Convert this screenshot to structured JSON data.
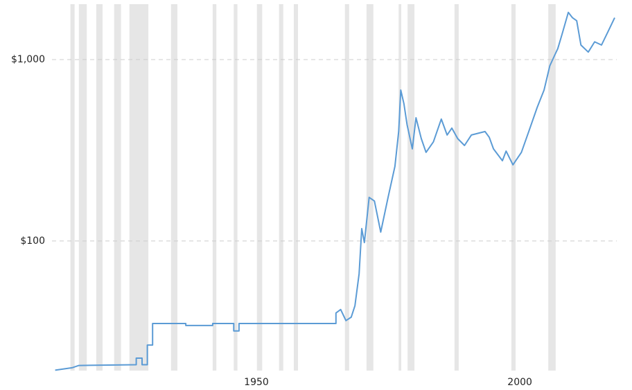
{
  "chart_data": {
    "type": "line",
    "x": [
      1911.8,
      1915,
      1916.3,
      1927.2,
      1927.2,
      1928.3,
      1928.3,
      1929.3,
      1929.3,
      1930.3,
      1930.3,
      1936.6,
      1936.6,
      1941.7,
      1941.7,
      1945.7,
      1945.7,
      1946.7,
      1946.7,
      1965.1,
      1965.1,
      1966,
      1967,
      1968,
      1968.7,
      1969.5,
      1970,
      1970.5,
      1971.4,
      1972.4,
      1973.6,
      1975,
      1976.3,
      1977,
      1977.4,
      1978,
      1978.6,
      1979.6,
      1980.3,
      1981.3,
      1982.2,
      1983.6,
      1985.1,
      1986.2,
      1987.1,
      1988.2,
      1989.5,
      1990.8,
      1993.4,
      1994.2,
      1995,
      1996.7,
      1997.4,
      1998.7,
      2000.3,
      2001.7,
      2003.3,
      2004.6,
      2005.7,
      2006.6,
      2007.2,
      2008,
      2009.2,
      2010,
      2010.8,
      2011.6,
      2013,
      2014.2,
      2015.5,
      2016.8,
      2018
    ],
    "values": [
      19.4,
      20,
      20.6,
      20.8,
      22.6,
      22.6,
      20.8,
      20.8,
      26.7,
      26.7,
      35.1,
      35.1,
      34.2,
      34.2,
      35.1,
      35.1,
      31.9,
      31.9,
      35.1,
      35.1,
      40.1,
      41.9,
      36.4,
      38,
      44,
      66,
      117,
      98,
      174,
      166,
      112,
      174,
      258,
      401,
      679,
      570,
      438,
      322,
      478,
      367,
      308,
      352,
      470,
      384,
      419,
      367,
      336,
      384,
      401,
      373,
      322,
      277,
      313,
      263,
      308,
      401,
      545,
      679,
      924,
      1054,
      1149,
      1372,
      1820,
      1700,
      1637,
      1203,
      1100,
      1252,
      1203,
      1436,
      1700
    ],
    "color": "#5b9bd5",
    "recessions": [
      [
        1914.7,
        1915.5
      ],
      [
        1916.3,
        1917.8
      ],
      [
        1919.6,
        1920.8
      ],
      [
        1923,
        1924.3
      ],
      [
        1925.9,
        1929.5
      ],
      [
        1933.8,
        1935
      ],
      [
        1941.7,
        1942.4
      ],
      [
        1945.7,
        1946.4
      ],
      [
        1950.1,
        1951.1
      ],
      [
        1954.3,
        1955.1
      ],
      [
        1957.1,
        1957.9
      ],
      [
        1966.8,
        1967.6
      ],
      [
        1970.9,
        1972.2
      ],
      [
        1977,
        1977.5
      ],
      [
        1978.7,
        1980
      ],
      [
        1987.6,
        1988.4
      ],
      [
        1998.4,
        1999.2
      ],
      [
        2005.4,
        2006.8
      ]
    ],
    "recession_color": "#e6e6e6",
    "xlim": [
      1911.2,
      2018.4
    ],
    "xticks": [
      1950,
      2000
    ],
    "ylim": [
      19.3,
      2130
    ],
    "log_y": true,
    "yticks": [
      {
        "value": 100,
        "label": "$100"
      },
      {
        "value": 1000,
        "label": "$1,000"
      }
    ],
    "grid": true
  }
}
